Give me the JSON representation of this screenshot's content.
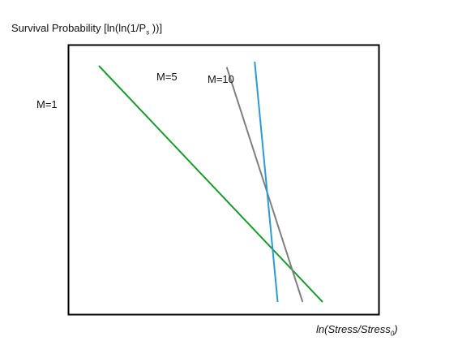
{
  "chart_data": {
    "type": "line",
    "ylabel": {
      "main": "Survival Probability [ln(ln(1/P",
      "sub": "s",
      "tail": " ))]"
    },
    "xlabel": {
      "main": "ln(Stress/Stress",
      "sub": "0",
      "tail": ")"
    },
    "grid": false,
    "series": [
      {
        "name": "M=1",
        "color": "#1a9a2e",
        "x": [
          -0.85,
          0.27
        ],
        "y": [
          1.06,
          -0.68
        ]
      },
      {
        "name": "M=5",
        "color": "#7f7f7f",
        "x": [
          -0.21,
          0.17
        ],
        "y": [
          1.05,
          -0.68
        ]
      },
      {
        "name": "M=10",
        "color": "#2a9bd6",
        "x": [
          -0.07,
          0.045
        ],
        "y": [
          1.09,
          -0.68
        ]
      }
    ],
    "xlim": [
      -1.0,
      0.55
    ],
    "ylim": [
      -0.77,
      1.21
    ]
  }
}
